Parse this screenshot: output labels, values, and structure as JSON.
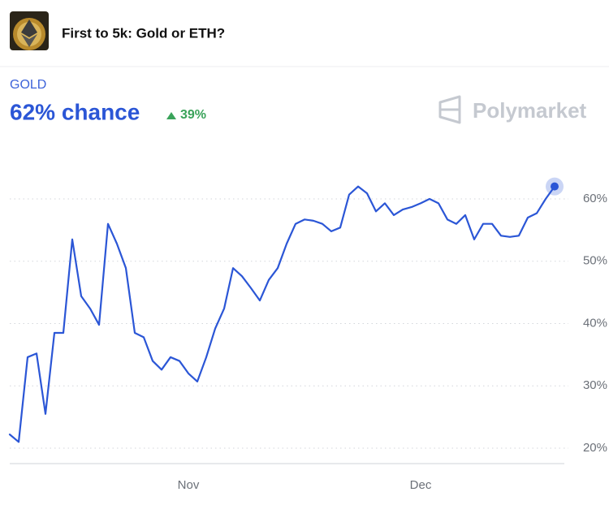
{
  "header": {
    "title": "First to 5k: Gold or ETH?"
  },
  "chart_data": {
    "type": "line",
    "outcome": "GOLD",
    "headline": "62% chance",
    "change": "39%",
    "brand": "Polymarket",
    "categories": [
      null,
      null,
      null,
      null,
      null,
      null,
      null,
      null,
      null,
      null,
      null,
      null,
      null,
      null,
      null,
      null,
      null,
      null,
      null,
      null,
      "Nov",
      null,
      null,
      null,
      null,
      null,
      null,
      null,
      null,
      null,
      null,
      null,
      null,
      null,
      null,
      null,
      null,
      null,
      null,
      null,
      null,
      null,
      null,
      null,
      null,
      null,
      "Dec",
      null,
      null,
      null,
      null,
      null,
      null,
      null,
      null,
      null,
      null,
      null,
      null,
      null,
      null,
      null
    ],
    "series": [
      {
        "name": "GOLD",
        "color": "#2b56d6",
        "values": [
          22.2,
          21,
          34.6,
          35.2,
          25.5,
          38.5,
          38.5,
          53.5,
          44.4,
          42.4,
          39.8,
          56,
          52.8,
          48.9,
          38.5,
          37.8,
          34,
          32.6,
          34.6,
          34,
          32,
          30.7,
          34.6,
          39.2,
          42.4,
          48.9,
          47.6,
          45.7,
          43.7,
          47,
          48.9,
          52.8,
          56,
          56.7,
          56.5,
          56,
          54.8,
          55.4,
          60.7,
          62,
          60.9,
          58,
          59.3,
          57.4,
          58.3,
          58.7,
          59.3,
          60,
          59.3,
          56.7,
          56,
          57.4,
          53.5,
          56,
          56,
          54.1,
          53.9,
          54.1,
          57,
          57.7,
          60,
          62
        ]
      }
    ],
    "ylim": [
      18,
      68
    ],
    "yticks": [
      {
        "value": 20,
        "label": "20%"
      },
      {
        "value": 30,
        "label": "30%"
      },
      {
        "value": 40,
        "label": "40%"
      },
      {
        "value": 50,
        "label": "50%"
      },
      {
        "value": 60,
        "label": "60%"
      }
    ],
    "grid": true
  }
}
